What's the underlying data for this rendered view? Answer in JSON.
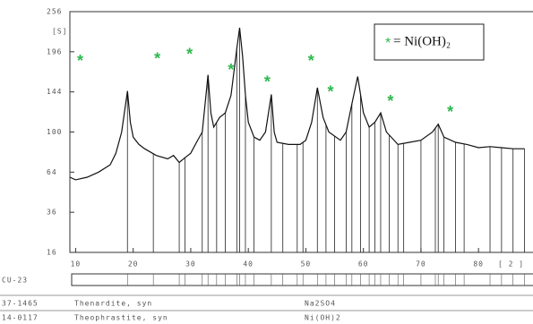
{
  "chart_data": {
    "type": "line",
    "scale": "sqrt",
    "ylabel": "[S]",
    "xlabel": "[ 2 ]",
    "xlim": [
      9,
      89
    ],
    "ylim": [
      16,
      256
    ],
    "xticks": [
      10,
      20,
      30,
      40,
      50,
      60,
      70,
      80
    ],
    "yticks": [
      16,
      36,
      64,
      100,
      144,
      196,
      256
    ],
    "color": "#111111",
    "x": [
      9,
      10,
      12,
      14,
      16,
      17,
      18,
      19,
      19.5,
      20,
      21,
      22,
      24,
      26,
      27,
      28,
      29,
      30,
      31,
      32,
      33,
      33.5,
      34,
      35,
      36,
      37,
      38,
      38.5,
      39,
      39.5,
      40,
      41,
      42,
      43,
      44,
      44.5,
      45,
      47,
      49,
      50,
      51,
      52,
      53,
      54,
      56,
      57,
      58,
      59,
      60,
      61,
      62,
      63,
      64,
      66,
      68,
      70,
      72,
      73,
      74,
      76,
      78,
      80,
      82,
      84,
      86,
      88
    ],
    "values": [
      60,
      58,
      60,
      64,
      70,
      80,
      100,
      145,
      110,
      95,
      88,
      84,
      78,
      75,
      78,
      72,
      76,
      80,
      90,
      100,
      165,
      120,
      105,
      115,
      120,
      140,
      200,
      231,
      190,
      140,
      110,
      95,
      92,
      100,
      141,
      100,
      90,
      88,
      88,
      92,
      110,
      149,
      115,
      100,
      92,
      100,
      130,
      163,
      120,
      105,
      110,
      120,
      100,
      88,
      90,
      92,
      100,
      108,
      95,
      90,
      88,
      85,
      86,
      85,
      84,
      84
    ],
    "reference_peaks": [
      19,
      23.5,
      28,
      29,
      32,
      33,
      34.5,
      36,
      38,
      38.5,
      39.5,
      41,
      44,
      46,
      48.5,
      49.5,
      52,
      53.5,
      55,
      57,
      58,
      59.5,
      61,
      62,
      63,
      64.5,
      66,
      67,
      70,
      72.5,
      73,
      74,
      76,
      77.5,
      82,
      84,
      86,
      88
    ],
    "annotations": [
      {
        "text": "*",
        "x": 10.8,
        "y": 182
      },
      {
        "text": "*",
        "x": 24.2,
        "y": 185
      },
      {
        "text": "*",
        "x": 29.8,
        "y": 191
      },
      {
        "text": "*",
        "x": 37.0,
        "y": 170
      },
      {
        "text": "*",
        "x": 43.3,
        "y": 155
      },
      {
        "text": "*",
        "x": 50.9,
        "y": 182
      },
      {
        "text": "*",
        "x": 54.3,
        "y": 143
      },
      {
        "text": "*",
        "x": 64.7,
        "y": 132
      },
      {
        "text": "*",
        "x": 75.1,
        "y": 120
      }
    ],
    "annotation_color": "#2db84d",
    "legend": {
      "marker": "*",
      "text": "= Ni(OH)₂"
    },
    "sample": "CU-23",
    "phases": [
      {
        "id": "37-1465",
        "name": "Thenardite, syn",
        "formula": "Na2SO4"
      },
      {
        "id": "14-0117",
        "name": "Theophrastite, syn",
        "formula": "Ni(OH)2"
      }
    ]
  }
}
